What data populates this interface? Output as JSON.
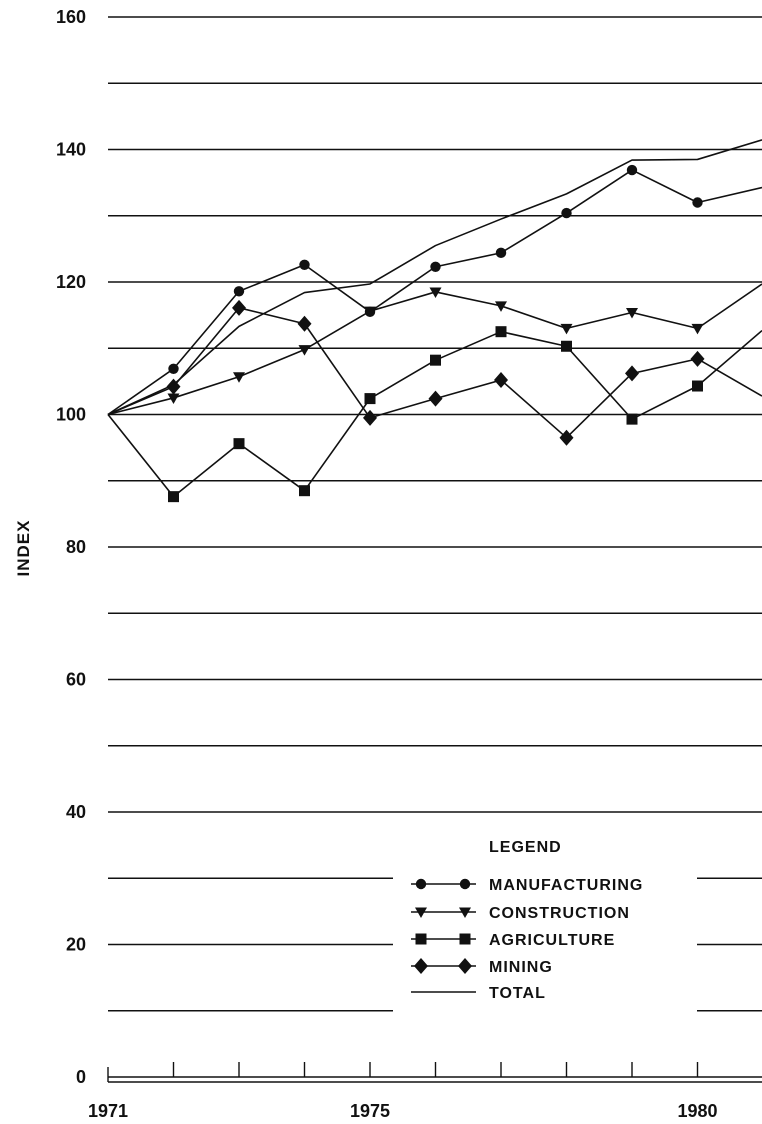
{
  "chart_data": {
    "type": "line",
    "ylabel": "INDEX",
    "xlabel": "",
    "xlim": [
      1971,
      1981
    ],
    "ylim": [
      0,
      160
    ],
    "y_ticks": [
      0,
      20,
      40,
      60,
      80,
      100,
      120,
      140,
      160
    ],
    "x_tick_labels": [
      {
        "value": 1971,
        "label": "1971"
      },
      {
        "value": 1975,
        "label": "1975"
      },
      {
        "value": 1980,
        "label": "1980"
      }
    ],
    "grid": true,
    "legend": {
      "title": "LEGEND",
      "position": "lower-right"
    },
    "x": [
      1971,
      1972,
      1973,
      1974,
      1975,
      1976,
      1977,
      1978,
      1979,
      1980,
      1981
    ],
    "series": [
      {
        "name": "MANUFACTURING",
        "marker": "circle",
        "values": [
          100,
          106.9,
          118.6,
          122.6,
          115.5,
          122.3,
          124.4,
          130.4,
          136.9,
          132,
          134.3
        ]
      },
      {
        "name": "CONSTRUCTION",
        "marker": "triangle-down",
        "values": [
          100,
          102.5,
          105.7,
          109.8,
          115.6,
          118.5,
          116.4,
          113,
          115.4,
          113,
          119.8
        ]
      },
      {
        "name": "AGRICULTURE",
        "marker": "square",
        "values": [
          100,
          87.6,
          95.6,
          88.5,
          102.4,
          108.2,
          112.5,
          110.3,
          99.3,
          104.3,
          112.8
        ]
      },
      {
        "name": "MINING",
        "marker": "diamond",
        "values": [
          100,
          104.2,
          116.1,
          113.7,
          99.5,
          102.4,
          105.2,
          96.5,
          106.2,
          108.4,
          102.7
        ]
      },
      {
        "name": "TOTAL",
        "marker": "none",
        "values": [
          100,
          104.5,
          113.3,
          118.4,
          119.7,
          125.5,
          129.5,
          133.3,
          138.4,
          138.5,
          141.5
        ]
      }
    ]
  }
}
